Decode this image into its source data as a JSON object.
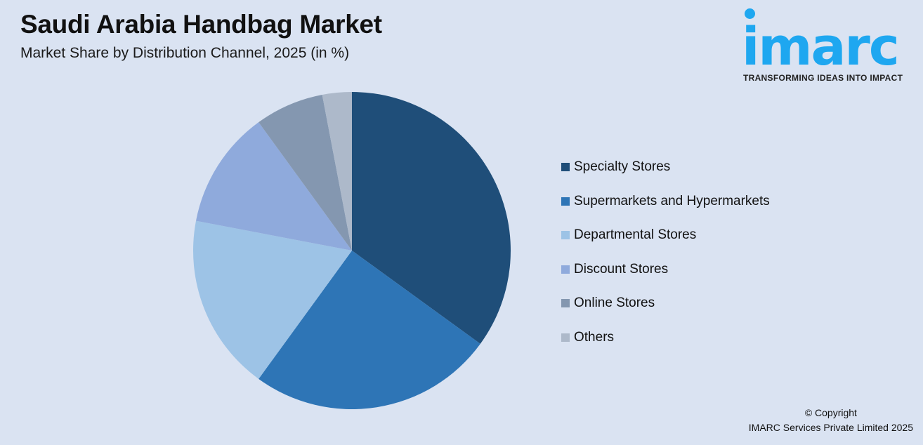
{
  "header": {
    "title": "Saudi Arabia Handbag Market",
    "subtitle": "Market Share by Distribution Channel, 2025 (in %)"
  },
  "logo": {
    "wordmark": "imarc",
    "tagline": "TRANSFORMING IDEAS INTO IMPACT",
    "color": "#1ea7f0"
  },
  "footer": {
    "copyright_line1": "© Copyright",
    "copyright_line2": "IMARC Services Private Limited 2025"
  },
  "chart_data": {
    "type": "pie",
    "title": "Saudi Arabia Handbag Market",
    "subtitle": "Market Share by Distribution Channel, 2025 (in %)",
    "categories": [
      "Specialty Stores",
      "Supermarkets and Hypermarkets",
      "Departmental Stores",
      "Discount Stores",
      "Online Stores",
      "Others"
    ],
    "values": [
      35,
      25,
      18,
      12,
      7,
      3
    ],
    "colors": [
      "#1f4e79",
      "#2e75b6",
      "#9dc3e6",
      "#8faadc",
      "#8497b0",
      "#adb9ca"
    ],
    "start_angle": "12 o'clock, clockwise",
    "legend_position": "right",
    "data_labels": false
  }
}
